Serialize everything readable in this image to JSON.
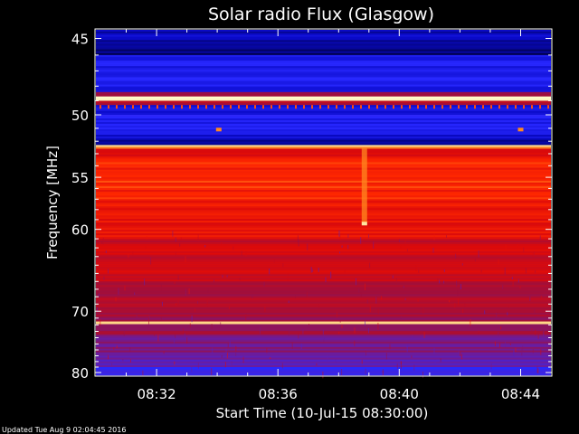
{
  "chart_data": {
    "type": "heatmap",
    "title": "Solar radio Flux (Glasgow)",
    "xlabel": "Start Time (10-Jul-15 08:30:00)",
    "ylabel": "Frequency [MHz]",
    "x_range_minutes": [
      0,
      15
    ],
    "x_ticks": [
      {
        "label": "08:32",
        "minute": 2
      },
      {
        "label": "08:36",
        "minute": 6
      },
      {
        "label": "08:40",
        "minute": 10
      },
      {
        "label": "08:44",
        "minute": 14
      }
    ],
    "y_range_mhz": [
      44.5,
      80.5
    ],
    "y_scale": "reciprocal",
    "y_ticks": [
      45,
      50,
      55,
      60,
      70,
      80
    ],
    "bands": [
      {
        "f0": 44.5,
        "f1": 45.2,
        "level": 0.1
      },
      {
        "f0": 45.2,
        "f1": 46.0,
        "level": 0.05
      },
      {
        "f0": 46.0,
        "f1": 48.4,
        "level": 0.2
      },
      {
        "f0": 48.4,
        "f1": 48.7,
        "level": 0.55
      },
      {
        "f0": 48.7,
        "f1": 49.0,
        "level": 1.0
      },
      {
        "f0": 49.0,
        "f1": 49.3,
        "level": 0.6
      },
      {
        "f0": 49.3,
        "f1": 50.0,
        "level": 0.15
      },
      {
        "f0": 50.0,
        "f1": 51.5,
        "level": 0.22
      },
      {
        "f0": 51.5,
        "f1": 52.3,
        "level": 0.12
      },
      {
        "f0": 52.3,
        "f1": 52.6,
        "level": 0.95
      },
      {
        "f0": 52.6,
        "f1": 53.4,
        "level": 0.72
      },
      {
        "f0": 53.4,
        "f1": 57.0,
        "level": 0.8
      },
      {
        "f0": 57.0,
        "f1": 61.0,
        "level": 0.74
      },
      {
        "f0": 61.0,
        "f1": 66.0,
        "level": 0.66
      },
      {
        "f0": 66.0,
        "f1": 70.5,
        "level": 0.58
      },
      {
        "f0": 70.5,
        "f1": 71.5,
        "level": 0.55
      },
      {
        "f0": 71.5,
        "f1": 71.9,
        "level": 0.98
      },
      {
        "f0": 71.9,
        "f1": 73.5,
        "level": 0.55
      },
      {
        "f0": 73.5,
        "f1": 77.0,
        "level": 0.45
      },
      {
        "f0": 77.0,
        "f1": 79.0,
        "level": 0.38
      },
      {
        "f0": 79.0,
        "f1": 80.5,
        "level": 0.28
      }
    ],
    "features": [
      {
        "kind": "vertical-streak",
        "minute": 8.85,
        "f0": 52.5,
        "f1": 59.5,
        "level": 0.9
      },
      {
        "kind": "spot",
        "minute": 8.85,
        "freq": 59.4,
        "level": 0.98
      },
      {
        "kind": "spot",
        "minute": 4.05,
        "freq": 51.1,
        "level": 0.9
      },
      {
        "kind": "spot",
        "minute": 14.0,
        "freq": 51.1,
        "level": 0.9
      }
    ]
  },
  "footer": {
    "updated": "Updated Tue Aug  9 02:04:45 2016"
  }
}
